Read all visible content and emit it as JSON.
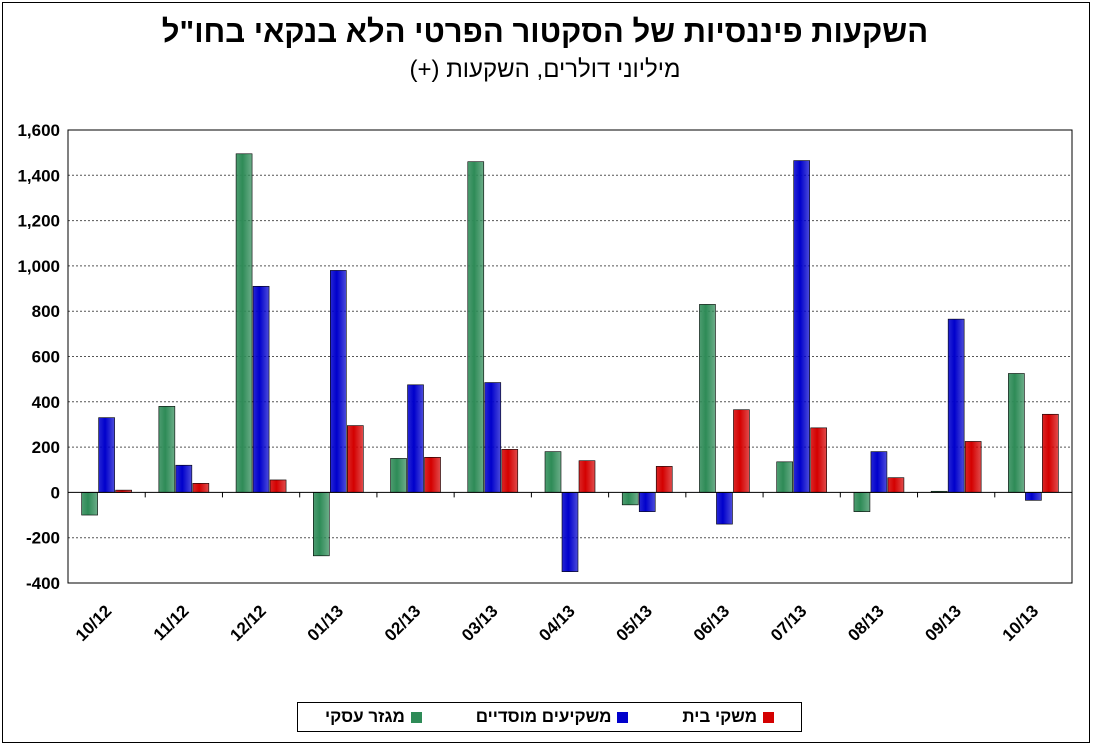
{
  "title": "השקעות פיננסיות של הסקטור הפרטי הלא בנקאי בחו\"ל",
  "subtitle": "מיליוני דולרים, השקעות (+)",
  "chart_data": {
    "type": "bar",
    "title": "השקעות פיננסיות של הסקטור הפרטי הלא בנקאי בחו\"ל",
    "subtitle": "מיליוני דולרים, השקעות (+)",
    "categories": [
      "10/12",
      "11/12",
      "12/12",
      "01/13",
      "02/13",
      "03/13",
      "04/13",
      "05/13",
      "06/13",
      "07/13",
      "08/13",
      "09/13",
      "10/13"
    ],
    "yticks": [
      "1,600",
      "1,400",
      "1,200",
      "1,000",
      "800",
      "600",
      "400",
      "200",
      "0",
      "-200",
      "-400"
    ],
    "ylim": [
      -400,
      1600
    ],
    "grid": true,
    "legend_position": "bottom",
    "series": [
      {
        "name": "מגזר עסקי",
        "color": "#2E8B57",
        "values": [
          -100,
          380,
          1495,
          -280,
          150,
          1460,
          180,
          -55,
          830,
          135,
          -85,
          5,
          525
        ]
      },
      {
        "name": "משקיעים מוסדיים",
        "color": "#0000CC",
        "values": [
          330,
          120,
          910,
          980,
          475,
          485,
          -350,
          -85,
          -140,
          1465,
          180,
          765,
          -35
        ]
      },
      {
        "name": "משקי בית",
        "color": "#D40000",
        "values": [
          10,
          40,
          55,
          295,
          155,
          190,
          140,
          115,
          365,
          285,
          65,
          225,
          345
        ]
      }
    ]
  }
}
